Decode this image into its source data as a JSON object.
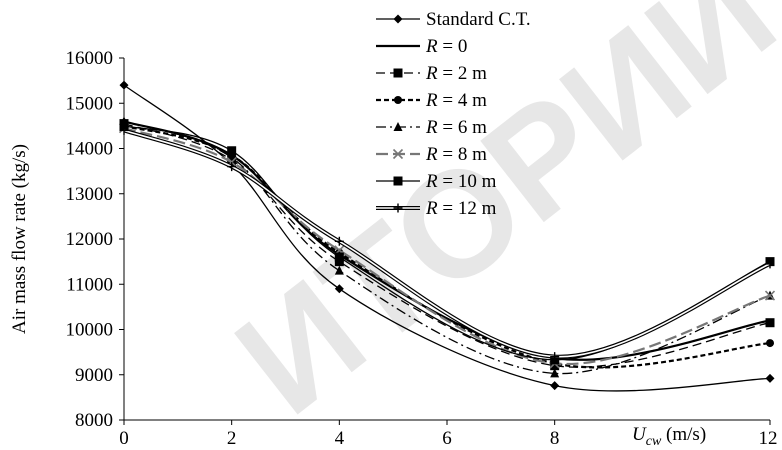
{
  "chart_data": {
    "type": "line",
    "xlabel": {
      "var": "U",
      "sub": "cw",
      "unit": " (m/s)"
    },
    "ylabel": "Air mass flow rate (kg/s)",
    "x_ticks": [
      0,
      2,
      4,
      6,
      8,
      12
    ],
    "y_ticks": [
      8000,
      9000,
      10000,
      11000,
      12000,
      13000,
      14000,
      15000,
      16000
    ],
    "xlim": [
      0,
      12
    ],
    "ylim": [
      8000,
      16000
    ],
    "grid": false,
    "legend_position": "top-right",
    "series": [
      {
        "name": "Standard C.T.",
        "color": "#000000",
        "dash": "",
        "width": 1.3,
        "marker": "diamond",
        "x": [
          0,
          2,
          4,
          8,
          12
        ],
        "y": [
          15400,
          13650,
          10900,
          8760,
          8920
        ]
      },
      {
        "name": "R = 0",
        "color": "#000000",
        "dash": "",
        "width": 2.2,
        "marker": "none",
        "x": [
          0,
          2,
          4,
          8,
          12
        ],
        "y": [
          14600,
          13850,
          11650,
          9370,
          10200
        ]
      },
      {
        "name": "R = 2 m",
        "color": "#000000",
        "dash": "9,5",
        "width": 1.3,
        "marker": "square",
        "x": [
          0,
          2,
          4,
          8,
          12
        ],
        "y": [
          14550,
          13750,
          11500,
          9200,
          10150
        ]
      },
      {
        "name": "R = 4 m",
        "color": "#000000",
        "dash": "5,3",
        "width": 2.2,
        "marker": "circle",
        "x": [
          0,
          2,
          4,
          8,
          12
        ],
        "y": [
          14500,
          13850,
          11700,
          9250,
          9700
        ]
      },
      {
        "name": "R = 6 m",
        "color": "#000000",
        "dash": "10,4,2,4",
        "width": 1.3,
        "marker": "triangle",
        "x": [
          0,
          2,
          4,
          8,
          12
        ],
        "y": [
          14600,
          13800,
          11300,
          9030,
          10750
        ]
      },
      {
        "name": "R = 8 m",
        "color": "#777777",
        "dash": "12,5",
        "width": 2.2,
        "marker": "x",
        "x": [
          0,
          2,
          4,
          8,
          12
        ],
        "y": [
          14450,
          13700,
          11750,
          9250,
          10750
        ]
      },
      {
        "name": "R = 10 m",
        "color": "#000000",
        "dash": "",
        "width": 1.3,
        "marker": "square",
        "x": [
          0,
          2,
          4,
          8,
          12
        ],
        "y": [
          14500,
          13950,
          11600,
          9330,
          11500
        ]
      },
      {
        "name": "R = 12 m",
        "color": "#000000",
        "dash": "",
        "width": 1.0,
        "double": true,
        "marker": "plus",
        "x": [
          0,
          2,
          4,
          8,
          12
        ],
        "y": [
          14400,
          13600,
          11950,
          9400,
          11450
        ]
      }
    ]
  }
}
